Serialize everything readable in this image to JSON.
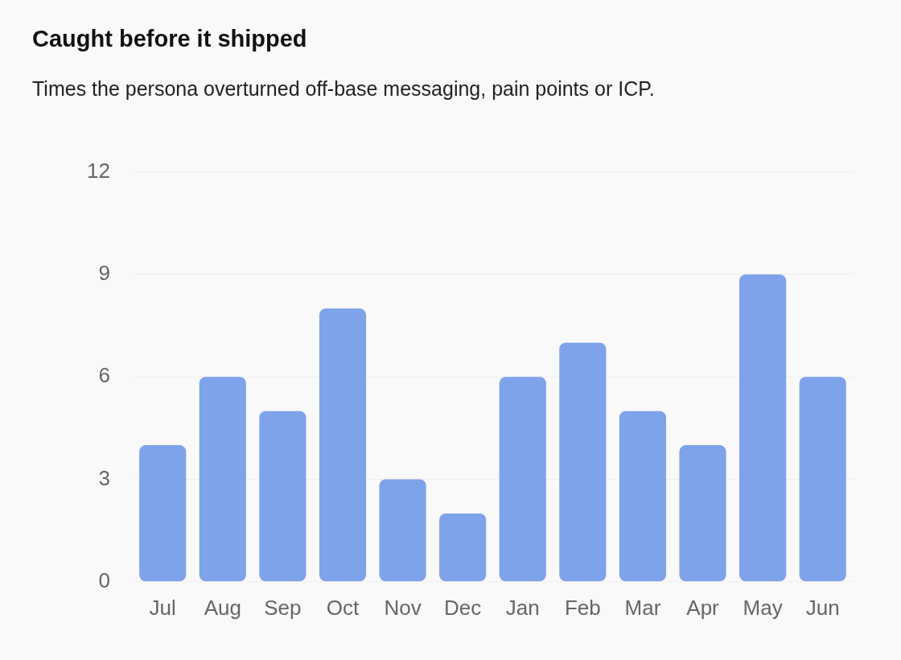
{
  "chart_data": {
    "type": "bar",
    "title": "Caught before it shipped",
    "subtitle": "Times the persona overturned off-base messaging, pain points or ICP.",
    "categories": [
      "Jul",
      "Aug",
      "Sep",
      "Oct",
      "Nov",
      "Dec",
      "Jan",
      "Feb",
      "Mar",
      "Apr",
      "May",
      "Jun"
    ],
    "values": [
      4,
      6,
      5,
      8,
      3,
      2,
      6,
      7,
      5,
      4,
      9,
      6
    ],
    "color": "#7fa3ea",
    "ylim": [
      0,
      12
    ],
    "yticks": [
      0,
      3,
      6,
      9,
      12
    ],
    "grid": "y"
  }
}
